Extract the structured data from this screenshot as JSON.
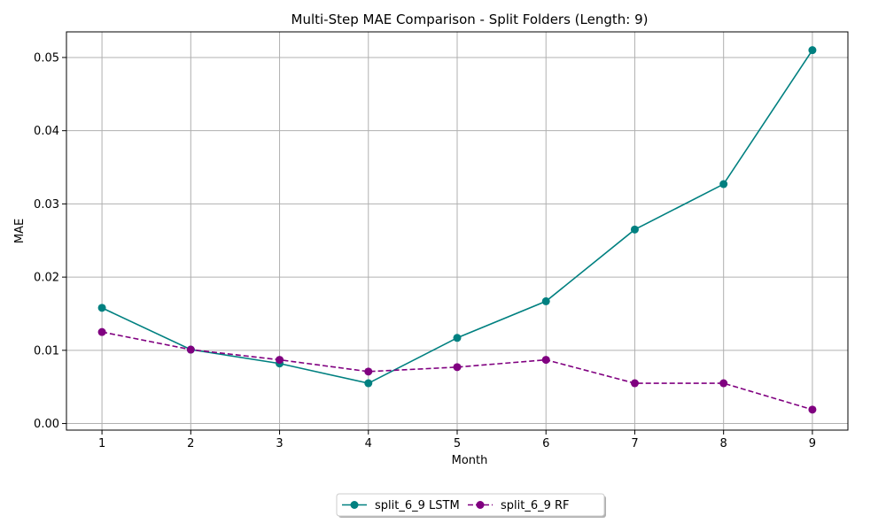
{
  "chart_data": {
    "type": "line",
    "title": "Multi-Step MAE Comparison - Split Folders (Length: 9)",
    "xlabel": "Month",
    "ylabel": "MAE",
    "x": [
      1,
      2,
      3,
      4,
      5,
      6,
      7,
      8,
      9
    ],
    "xlim": [
      0.6,
      9.4
    ],
    "ylim": [
      -0.0009,
      0.0535
    ],
    "xticks": [
      1,
      2,
      3,
      4,
      5,
      6,
      7,
      8,
      9
    ],
    "yticks": [
      0.0,
      0.01,
      0.02,
      0.03,
      0.04,
      0.05
    ],
    "ytick_labels": [
      "0.00",
      "0.01",
      "0.02",
      "0.03",
      "0.04",
      "0.05"
    ],
    "grid": true,
    "legend_position": "bottom-center, outside below axes",
    "series": [
      {
        "name": "split_6_9 LSTM",
        "color": "#008080",
        "line_style": "solid",
        "marker": "circle",
        "values": [
          0.0158,
          0.0101,
          0.0082,
          0.0055,
          0.0117,
          0.0167,
          0.0265,
          0.0327,
          0.051
        ]
      },
      {
        "name": "split_6_9 RF",
        "color": "#800080",
        "line_style": "dashed",
        "marker": "circle",
        "values": [
          0.0125,
          0.0101,
          0.0087,
          0.0071,
          0.0077,
          0.0087,
          0.0055,
          0.0055,
          0.0019
        ]
      }
    ]
  }
}
